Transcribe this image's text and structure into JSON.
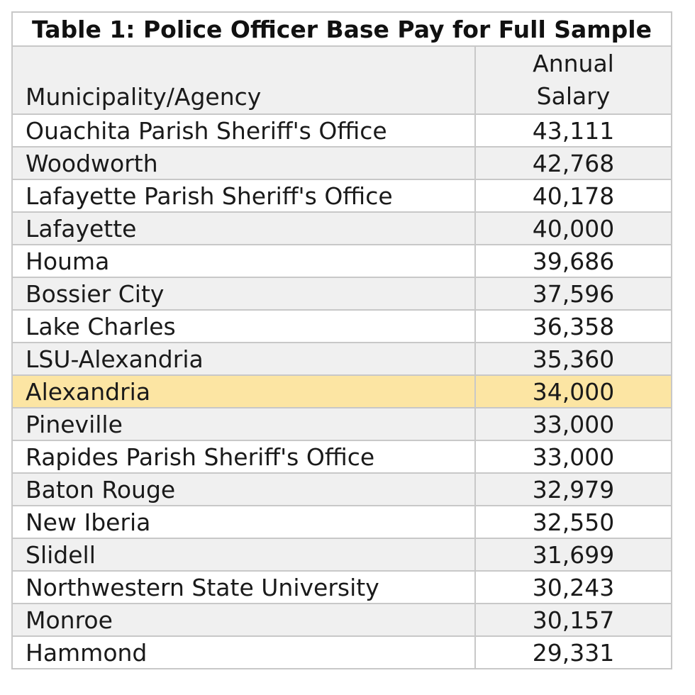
{
  "table": {
    "title": "Table 1: Police Officer Base Pay for Full Sample",
    "header": {
      "name_col": "Municipality/Agency",
      "salary_col_line1": "Annual",
      "salary_col_line2": "Salary"
    },
    "highlight_color": "#fce5a3",
    "rows": [
      {
        "name": "Ouachita Parish Sheriff's Office",
        "salary": "43,111"
      },
      {
        "name": "Woodworth",
        "salary": "42,768"
      },
      {
        "name": "Lafayette Parish Sheriff's Office",
        "salary": "40,178"
      },
      {
        "name": "Lafayette",
        "salary": "40,000"
      },
      {
        "name": "Houma",
        "salary": "39,686"
      },
      {
        "name": "Bossier City",
        "salary": "37,596"
      },
      {
        "name": "Lake Charles",
        "salary": "36,358"
      },
      {
        "name": "LSU-Alexandria",
        "salary": "35,360"
      },
      {
        "name": "Alexandria",
        "salary": "34,000",
        "highlighted": true
      },
      {
        "name": "Pineville",
        "salary": "33,000"
      },
      {
        "name": "Rapides Parish Sheriff's Office",
        "salary": "33,000"
      },
      {
        "name": "Baton Rouge",
        "salary": "32,979"
      },
      {
        "name": "New Iberia",
        "salary": "32,550"
      },
      {
        "name": "Slidell",
        "salary": "31,699"
      },
      {
        "name": "Northwestern State University",
        "salary": "30,243"
      },
      {
        "name": "Monroe",
        "salary": "30,157"
      },
      {
        "name": "Hammond",
        "salary": "29,331"
      }
    ]
  }
}
